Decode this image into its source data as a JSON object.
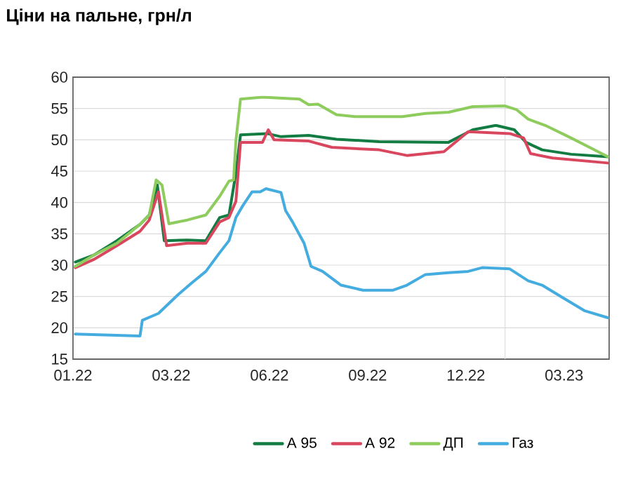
{
  "chart_data": {
    "type": "line",
    "title": "Ціни на пальне, грн/л",
    "xlim": [
      "2022-01-01",
      "2023-04-10"
    ],
    "xticks": [
      {
        "value": "2022-01-01",
        "label": "01.22"
      },
      {
        "value": "2022-03-27",
        "label": "03.22"
      },
      {
        "value": "2022-06-20",
        "label": "06.22"
      },
      {
        "value": "2022-09-13",
        "label": "09.22"
      },
      {
        "value": "2022-12-07",
        "label": "12.22"
      },
      {
        "value": "2023-03-02",
        "label": "03.23"
      }
    ],
    "ylim": [
      15,
      60
    ],
    "yticks": [
      15,
      20,
      25,
      30,
      35,
      40,
      45,
      50,
      55,
      60
    ],
    "grid": "y",
    "legend": "bottom",
    "marker": "none",
    "line_style": "solid",
    "ref_lines": [
      {
        "axis": "x",
        "value": "2023-01-10",
        "color": "#d9d9d9"
      }
    ],
    "series": [
      {
        "name": "А 95",
        "color": "#127c43",
        "x": [
          "2022-01-03",
          "2022-01-19",
          "2022-02-08",
          "2022-02-28",
          "2022-03-08",
          "2022-03-15",
          "2022-03-21",
          "2022-04-10",
          "2022-04-26",
          "2022-05-08",
          "2022-05-16",
          "2022-05-22",
          "2022-05-26",
          "2022-06-18",
          "2022-06-30",
          "2022-07-24",
          "2022-08-17",
          "2022-09-23",
          "2022-11-22",
          "2022-12-13",
          "2023-01-02",
          "2023-01-18",
          "2023-01-28",
          "2023-02-11",
          "2023-03-08",
          "2023-04-09"
        ],
        "values": [
          30.5,
          31.6,
          33.9,
          36.5,
          38,
          42.8,
          33.9,
          34,
          33.9,
          37.6,
          38,
          44.7,
          50.8,
          51,
          50.5,
          50.7,
          50.1,
          49.7,
          49.6,
          51.6,
          52.3,
          51.6,
          49.6,
          48.4,
          47.7,
          47.3
        ]
      },
      {
        "name": "А 92",
        "color": "#d9475e",
        "x": [
          "2022-01-03",
          "2022-01-19",
          "2022-02-08",
          "2022-02-28",
          "2022-03-08",
          "2022-03-16",
          "2022-03-23",
          "2022-04-10",
          "2022-04-26",
          "2022-05-08",
          "2022-05-16",
          "2022-05-22",
          "2022-05-26",
          "2022-06-14",
          "2022-06-19",
          "2022-06-24",
          "2022-07-24",
          "2022-08-13",
          "2022-09-23",
          "2022-10-17",
          "2022-11-18",
          "2022-12-09",
          "2023-01-14",
          "2023-01-26",
          "2023-02-01",
          "2023-02-20",
          "2023-04-09"
        ],
        "values": [
          29.6,
          30.9,
          33.1,
          35.4,
          37.2,
          41.7,
          33.1,
          33.5,
          33.5,
          36.9,
          37.6,
          40.2,
          49.6,
          49.6,
          51.6,
          50,
          49.8,
          48.8,
          48.4,
          47.5,
          48.1,
          51.3,
          51,
          50.3,
          47.8,
          47.1,
          46.3
        ]
      },
      {
        "name": "ДП",
        "color": "#8fcc5e",
        "x": [
          "2022-01-03",
          "2022-01-19",
          "2022-02-08",
          "2022-02-28",
          "2022-03-08",
          "2022-03-14",
          "2022-03-19",
          "2022-03-25",
          "2022-04-10",
          "2022-04-26",
          "2022-05-08",
          "2022-05-16",
          "2022-05-20",
          "2022-05-22",
          "2022-05-26",
          "2022-06-14",
          "2022-07-16",
          "2022-07-24",
          "2022-08-01",
          "2022-08-17",
          "2022-09-02",
          "2022-10-13",
          "2022-11-02",
          "2022-11-22",
          "2022-12-13",
          "2023-01-10",
          "2023-01-20",
          "2023-01-30",
          "2023-02-15",
          "2023-03-08",
          "2023-03-24",
          "2023-04-09"
        ],
        "values": [
          29.8,
          31.6,
          33.5,
          36.5,
          38,
          43.6,
          42.8,
          36.6,
          37.2,
          38,
          41,
          43.4,
          43.6,
          49.9,
          56.5,
          56.8,
          56.5,
          55.6,
          55.7,
          54,
          53.7,
          53.7,
          54.2,
          54.4,
          55.3,
          55.4,
          54.8,
          53.3,
          52.2,
          50.3,
          48.8,
          47.3
        ]
      },
      {
        "name": "Газ",
        "color": "#45acdf",
        "x": [
          "2022-01-03",
          "2022-02-28",
          "2022-03-02",
          "2022-03-16",
          "2022-04-02",
          "2022-04-14",
          "2022-04-26",
          "2022-05-08",
          "2022-05-16",
          "2022-05-22",
          "2022-05-28",
          "2022-06-05",
          "2022-06-12",
          "2022-06-17",
          "2022-06-30",
          "2022-07-04",
          "2022-07-10",
          "2022-07-20",
          "2022-07-26",
          "2022-08-05",
          "2022-08-21",
          "2022-09-09",
          "2022-10-05",
          "2022-10-17",
          "2022-11-02",
          "2022-11-22",
          "2022-12-09",
          "2022-12-21",
          "2023-01-14",
          "2023-01-30",
          "2023-02-11",
          "2023-02-28",
          "2023-03-20",
          "2023-04-09"
        ],
        "values": [
          19,
          18.7,
          21.2,
          22.3,
          25.3,
          27.2,
          29,
          32,
          33.9,
          37.6,
          39.5,
          41.7,
          41.7,
          42.2,
          41.6,
          38.7,
          36.9,
          33.5,
          29.8,
          29,
          26.8,
          26,
          26,
          26.8,
          28.5,
          28.8,
          29,
          29.6,
          29.4,
          27.5,
          26.8,
          24.9,
          22.7,
          21.6
        ]
      }
    ]
  }
}
